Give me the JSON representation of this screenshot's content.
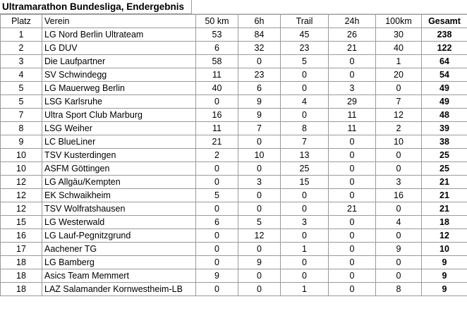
{
  "title": "Ultramarathon Bundesliga, Endergebnis",
  "headers": [
    "Platz",
    "Verein",
    "50 km",
    "6h",
    "Trail",
    "24h",
    "100km",
    "Gesamt"
  ],
  "rows": [
    [
      "1",
      "LG Nord Berlin Ultrateam",
      "53",
      "84",
      "45",
      "26",
      "30",
      "238"
    ],
    [
      "2",
      "LG DUV",
      "6",
      "32",
      "23",
      "21",
      "40",
      "122"
    ],
    [
      "3",
      "Die Laufpartner",
      "58",
      "0",
      "5",
      "0",
      "1",
      "64"
    ],
    [
      "4",
      "SV Schwindegg",
      "11",
      "23",
      "0",
      "0",
      "20",
      "54"
    ],
    [
      "5",
      "LG Mauerweg Berlin",
      "40",
      "6",
      "0",
      "3",
      "0",
      "49"
    ],
    [
      "5",
      "LSG Karlsruhe",
      "0",
      "9",
      "4",
      "29",
      "7",
      "49"
    ],
    [
      "7",
      "Ultra Sport Club Marburg",
      "16",
      "9",
      "0",
      "11",
      "12",
      "48"
    ],
    [
      "8",
      "LSG Weiher",
      "11",
      "7",
      "8",
      "11",
      "2",
      "39"
    ],
    [
      "9",
      "LC BlueLiner",
      "21",
      "0",
      "7",
      "0",
      "10",
      "38"
    ],
    [
      "10",
      "TSV Kusterdingen",
      "2",
      "10",
      "13",
      "0",
      "0",
      "25"
    ],
    [
      "10",
      "ASFM Göttingen",
      "0",
      "0",
      "25",
      "0",
      "0",
      "25"
    ],
    [
      "12",
      "LG Allgäu/Kempten",
      "0",
      "3",
      "15",
      "0",
      "3",
      "21"
    ],
    [
      "12",
      "EK Schwaikheim",
      "5",
      "0",
      "0",
      "0",
      "16",
      "21"
    ],
    [
      "12",
      "TSV Wolfratshausen",
      "0",
      "0",
      "0",
      "21",
      "0",
      "21"
    ],
    [
      "15",
      "LG Westerwald",
      "6",
      "5",
      "3",
      "0",
      "4",
      "18"
    ],
    [
      "16",
      "LG Lauf-Pegnitzgrund",
      "0",
      "12",
      "0",
      "0",
      "0",
      "12"
    ],
    [
      "17",
      "Aachener TG",
      "0",
      "0",
      "1",
      "0",
      "9",
      "10"
    ],
    [
      "18",
      "LG Bamberg",
      "0",
      "9",
      "0",
      "0",
      "0",
      "9"
    ],
    [
      "18",
      "Asics Team Memmert",
      "9",
      "0",
      "0",
      "0",
      "0",
      "9"
    ],
    [
      "18",
      "LAZ Salamander Kornwestheim-LB",
      "0",
      "0",
      "1",
      "0",
      "8",
      "9"
    ]
  ]
}
